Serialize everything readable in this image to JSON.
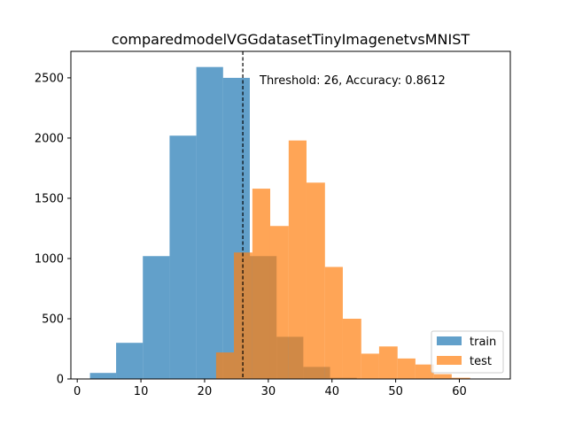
{
  "chart_data": {
    "type": "bar",
    "title": "comparedmodelVGGdatasetTinyImagenetvsMNIST",
    "xlabel": "",
    "ylabel": "",
    "xlim": [
      -1,
      68
    ],
    "ylim": [
      0,
      2720
    ],
    "xticks": [
      0,
      10,
      20,
      30,
      40,
      50,
      60
    ],
    "yticks": [
      0,
      500,
      1000,
      1500,
      2000,
      2500
    ],
    "grid": false,
    "legend_position": "lower-right",
    "threshold": 26,
    "annotation": "Threshold: 26, Accuracy: 0.8612",
    "series": [
      {
        "name": "train",
        "color": "#1f77b4",
        "opacity": 0.7,
        "bins": [
          {
            "x0": 2.0,
            "x1": 6.1,
            "count": 50
          },
          {
            "x0": 6.1,
            "x1": 10.3,
            "count": 300
          },
          {
            "x0": 10.3,
            "x1": 14.5,
            "count": 1020
          },
          {
            "x0": 14.5,
            "x1": 18.7,
            "count": 2020
          },
          {
            "x0": 18.7,
            "x1": 22.9,
            "count": 2590
          },
          {
            "x0": 22.9,
            "x1": 27.1,
            "count": 2500
          },
          {
            "x0": 27.1,
            "x1": 31.3,
            "count": 1020
          },
          {
            "x0": 31.3,
            "x1": 35.5,
            "count": 350
          },
          {
            "x0": 35.5,
            "x1": 39.7,
            "count": 100
          },
          {
            "x0": 39.7,
            "x1": 43.9,
            "count": 10
          }
        ]
      },
      {
        "name": "test",
        "color": "#ff7f0e",
        "opacity": 0.7,
        "bins": [
          {
            "x0": 21.8,
            "x1": 24.6,
            "count": 220
          },
          {
            "x0": 24.6,
            "x1": 27.5,
            "count": 1050
          },
          {
            "x0": 27.5,
            "x1": 30.3,
            "count": 1580
          },
          {
            "x0": 30.3,
            "x1": 33.2,
            "count": 1270
          },
          {
            "x0": 33.2,
            "x1": 36.0,
            "count": 1980
          },
          {
            "x0": 36.0,
            "x1": 38.9,
            "count": 1630
          },
          {
            "x0": 38.9,
            "x1": 41.7,
            "count": 930
          },
          {
            "x0": 41.7,
            "x1": 44.6,
            "count": 500
          },
          {
            "x0": 44.6,
            "x1": 47.4,
            "count": 210
          },
          {
            "x0": 47.4,
            "x1": 50.3,
            "count": 270
          },
          {
            "x0": 50.3,
            "x1": 53.1,
            "count": 170
          },
          {
            "x0": 53.1,
            "x1": 56.0,
            "count": 120
          },
          {
            "x0": 56.0,
            "x1": 58.8,
            "count": 40
          },
          {
            "x0": 58.8,
            "x1": 61.7,
            "count": 10
          }
        ]
      }
    ]
  }
}
